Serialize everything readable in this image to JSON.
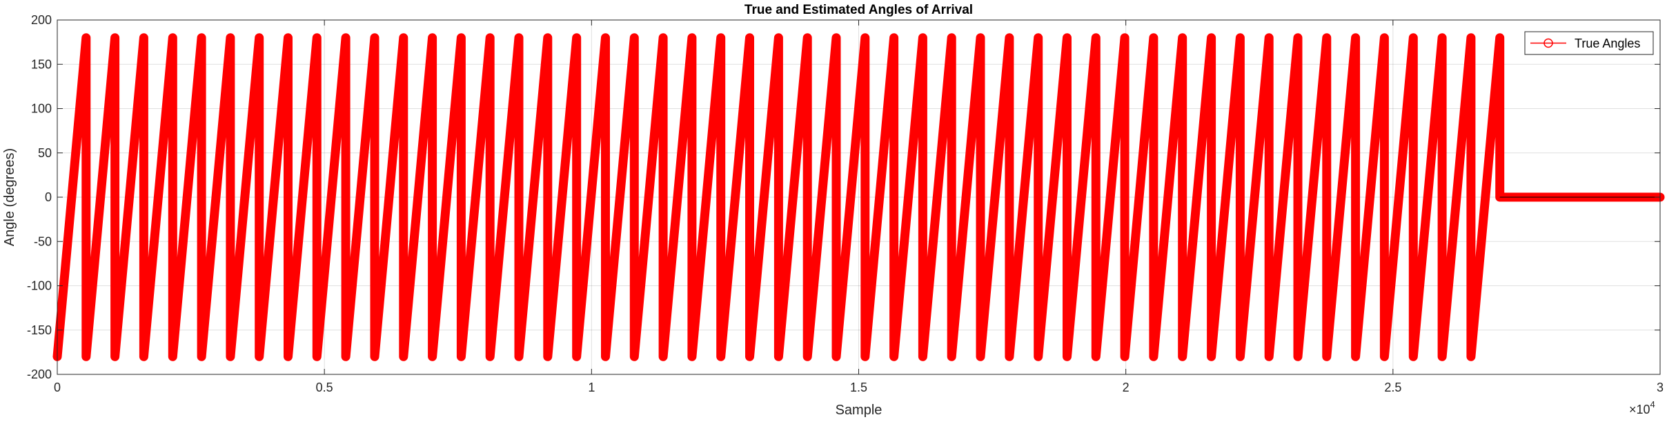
{
  "chart_data": {
    "type": "line",
    "title": "True and Estimated Angles of Arrival",
    "xlabel": "Sample",
    "ylabel": "Angle (degrees)",
    "x_exponent_label": "×10",
    "x_exponent_power": "4",
    "xlim": [
      0,
      30000
    ],
    "ylim": [
      -200,
      200
    ],
    "xticks": [
      0,
      5000,
      10000,
      15000,
      20000,
      25000,
      30000
    ],
    "xtick_labels": [
      "0",
      "0.5",
      "1",
      "1.5",
      "2",
      "2.5",
      "3"
    ],
    "yticks": [
      -200,
      -150,
      -100,
      -50,
      0,
      50,
      100,
      150,
      200
    ],
    "ytick_labels": [
      "-200",
      "-150",
      "-100",
      "-50",
      "0",
      "50",
      "100",
      "150",
      "200"
    ],
    "grid": true,
    "legend_position": "top-right",
    "series": [
      {
        "name": "True Angles",
        "color": "#ff0000",
        "marker": "circle",
        "pattern": "sawtooth",
        "period_samples": 540,
        "amplitude_min": -180,
        "amplitude_max": 180,
        "x_start": 0,
        "x_end": 27000,
        "value_after_end": 0
      }
    ]
  }
}
